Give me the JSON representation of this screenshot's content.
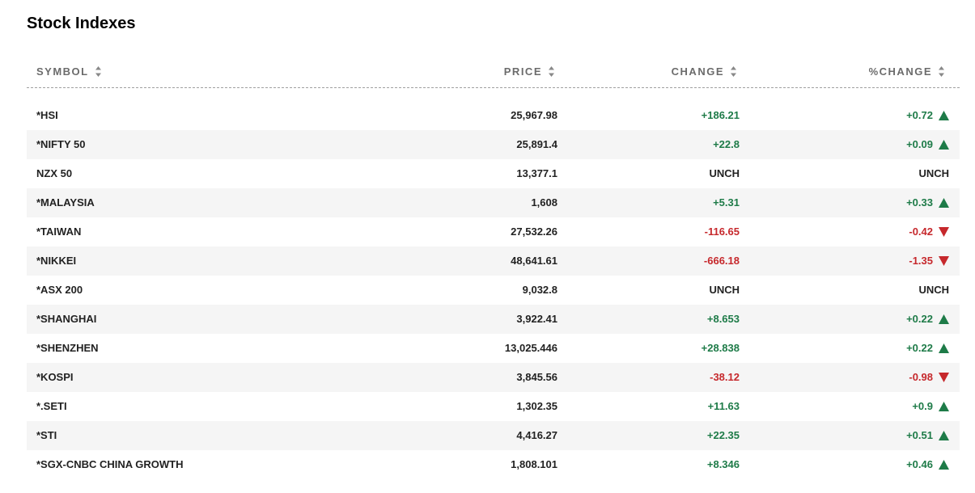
{
  "title": "Stock Indexes",
  "columns": [
    "SYMBOL",
    "PRICE",
    "CHANGE",
    "%CHANGE"
  ],
  "rows": [
    [
      "*HSI",
      "25,967.98",
      "+186.21",
      "+0.72"
    ],
    [
      "*NIFTY 50",
      "25,891.4",
      "+22.8",
      "+0.09"
    ],
    [
      "NZX 50",
      "13,377.1",
      "UNCH",
      "UNCH"
    ],
    [
      "*MALAYSIA",
      "1,608",
      "+5.31",
      "+0.33"
    ],
    [
      "*TAIWAN",
      "27,532.26",
      "-116.65",
      "-0.42"
    ],
    [
      "*NIKKEI",
      "48,641.61",
      "-666.18",
      "-1.35"
    ],
    [
      "*ASX 200",
      "9,032.8",
      "UNCH",
      "UNCH"
    ],
    [
      "*SHANGHAI",
      "3,922.41",
      "+8.653",
      "+0.22"
    ],
    [
      "*SHENZHEN",
      "13,025.446",
      "+28.838",
      "+0.22"
    ],
    [
      "*KOSPI",
      "3,845.56",
      "-38.12",
      "-0.98"
    ],
    [
      "*.SETI",
      "1,302.35",
      "+11.63",
      "+0.9"
    ],
    [
      "*STI",
      "4,416.27",
      "+22.35",
      "+0.51"
    ],
    [
      "*SGX-CNBC CHINA GROWTH",
      "1,808.101",
      "+8.346",
      "+0.46"
    ]
  ]
}
